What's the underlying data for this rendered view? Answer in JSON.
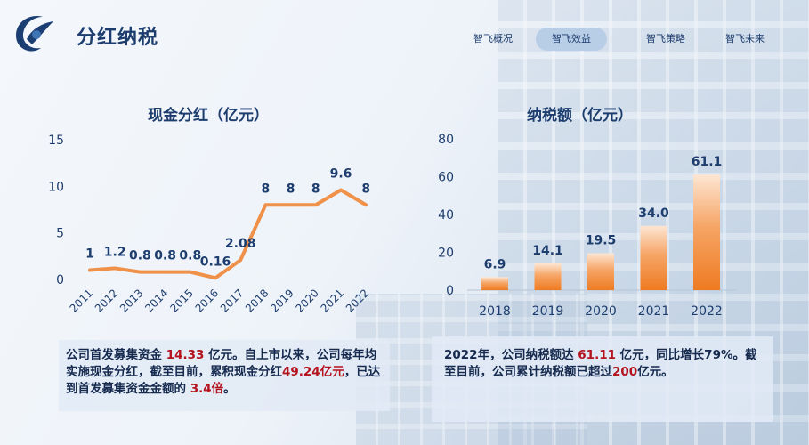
{
  "page": {
    "title": "分红纳税"
  },
  "nav": {
    "tabs": [
      {
        "label": "智飞概况",
        "active": false
      },
      {
        "label": "智飞效益",
        "active": true
      },
      {
        "label": "智飞策略",
        "active": false
      },
      {
        "label": "智飞未来",
        "active": false
      }
    ]
  },
  "chart_data": [
    {
      "type": "line",
      "title": "现金分红（亿元）",
      "xlabel": "",
      "ylabel": "",
      "categories": [
        "2011",
        "2012",
        "2013",
        "2014",
        "2015",
        "2016",
        "2017",
        "2018",
        "2019",
        "2020",
        "2021",
        "2022"
      ],
      "values": [
        1,
        1.2,
        0.8,
        0.8,
        0.8,
        0.16,
        2.08,
        8,
        8,
        8,
        9.6,
        8
      ],
      "data_labels": [
        "1",
        "1.2",
        "0.8",
        "0.8",
        "0.8",
        "0.16",
        "2.08",
        "8",
        "8",
        "8",
        "9.6",
        "8"
      ],
      "yticks": [
        "0",
        "5",
        "10",
        "15"
      ],
      "ylim": [
        0,
        15
      ],
      "grid": false,
      "color": "#f0914a"
    },
    {
      "type": "bar",
      "title": "纳税额（亿元）",
      "xlabel": "",
      "ylabel": "",
      "categories": [
        "2018",
        "2019",
        "2020",
        "2021",
        "2022"
      ],
      "values": [
        6.9,
        14.1,
        19.5,
        34.0,
        61.1
      ],
      "data_labels": [
        "6.9",
        "14.1",
        "19.5",
        "34.0",
        "61.1"
      ],
      "yticks": [
        "0",
        "20",
        "40",
        "60",
        "80"
      ],
      "ylim": [
        0,
        80
      ],
      "grid": false,
      "color": "#f07f2a"
    }
  ],
  "dividend_panel": {
    "p1": "公司首发募集资金 ",
    "v1": "14.33",
    "p2": " 亿元。自上市以来，公司每年均实施现金分红，截至目前，累积现金分红",
    "v2": "49.24亿元",
    "p3": "，已达到首发募集资金金额的 ",
    "v3": "3.4倍",
    "p4": "。"
  },
  "tax_panel": {
    "p1": "2022年，公司纳税额达 ",
    "v1": "61.11",
    "p2": " 亿元，同比增长79%。截至目前，公司累计纳税额已超过",
    "v2": "200",
    "p3": "亿元。"
  }
}
